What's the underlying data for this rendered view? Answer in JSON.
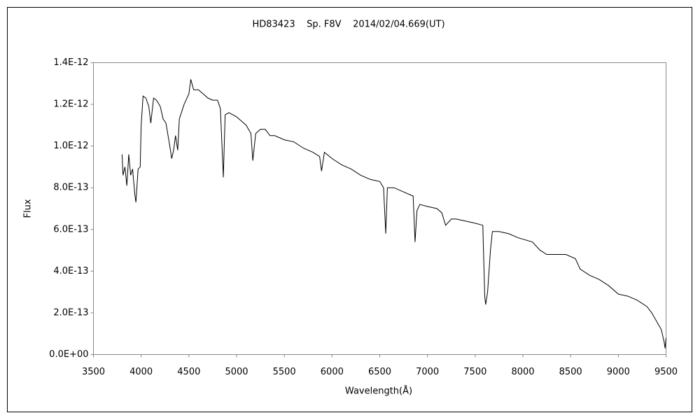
{
  "chart_data": {
    "type": "line",
    "title": "HD83423    Sp. F8V    2014/02/04.669(UT)",
    "x_label": "Wavelength(Å)",
    "y_label": "Flux",
    "color": "#000000",
    "xlim": [
      3500,
      9500
    ],
    "xticks": [
      3500,
      4000,
      4500,
      5000,
      5500,
      6000,
      6500,
      7000,
      7500,
      8000,
      8500,
      9000,
      9500
    ],
    "ylim": [
      0,
      1.4e-12
    ],
    "yticks": [
      {
        "value": 0,
        "label": "0.0E+00"
      },
      {
        "value": 2e-13,
        "label": "2.0E-13"
      },
      {
        "value": 4e-13,
        "label": "4.0E-13"
      },
      {
        "value": 6e-13,
        "label": "6.0E-13"
      },
      {
        "value": 8e-13,
        "label": "8.0E-13"
      },
      {
        "value": 1e-12,
        "label": "1.0E-12"
      },
      {
        "value": 1.2e-12,
        "label": "1.2E-12"
      },
      {
        "value": 1.4e-12,
        "label": "1.4E-12"
      }
    ],
    "x": [
      3800,
      3810,
      3830,
      3850,
      3870,
      3890,
      3910,
      3933,
      3945,
      3968,
      3990,
      4000,
      4020,
      4050,
      4080,
      4101,
      4130,
      4160,
      4200,
      4230,
      4260,
      4300,
      4320,
      4340,
      4360,
      4383,
      4400,
      4450,
      4500,
      4520,
      4550,
      4600,
      4650,
      4700,
      4750,
      4800,
      4830,
      4861,
      4880,
      4920,
      4960,
      5000,
      5050,
      5100,
      5150,
      5170,
      5200,
      5250,
      5300,
      5350,
      5400,
      5500,
      5600,
      5700,
      5800,
      5870,
      5890,
      5920,
      6000,
      6100,
      6200,
      6300,
      6400,
      6500,
      6540,
      6563,
      6580,
      6650,
      6750,
      6850,
      6870,
      6890,
      6920,
      7000,
      7100,
      7150,
      7190,
      7250,
      7300,
      7400,
      7500,
      7580,
      7600,
      7610,
      7630,
      7660,
      7680,
      7750,
      7850,
      7950,
      8100,
      8180,
      8250,
      8350,
      8450,
      8550,
      8600,
      8700,
      8800,
      8900,
      9000,
      9100,
      9200,
      9300,
      9350,
      9400,
      9450,
      9480,
      9490,
      9500
    ],
    "values": [
      9.6e-13,
      8.6e-13,
      9e-13,
      8.1e-13,
      9.6e-13,
      8.6e-13,
      8.9e-13,
      7.7e-13,
      7.3e-13,
      8.9e-13,
      9e-13,
      1.1e-12,
      1.24e-12,
      1.23e-12,
      1.19e-12,
      1.11e-12,
      1.23e-12,
      1.22e-12,
      1.19e-12,
      1.13e-12,
      1.11e-12,
      1e-12,
      9.4e-13,
      9.8e-13,
      1.05e-12,
      9.8e-13,
      1.13e-12,
      1.2e-12,
      1.25e-12,
      1.32e-12,
      1.27e-12,
      1.27e-12,
      1.25e-12,
      1.23e-12,
      1.22e-12,
      1.22e-12,
      1.18e-12,
      8.5e-13,
      1.15e-12,
      1.16e-12,
      1.15e-12,
      1.14e-12,
      1.12e-12,
      1.1e-12,
      1.06e-12,
      9.3e-13,
      1.06e-12,
      1.08e-12,
      1.08e-12,
      1.05e-12,
      1.05e-12,
      1.03e-12,
      1.02e-12,
      9.9e-13,
      9.7e-13,
      9.5e-13,
      8.8e-13,
      9.7e-13,
      9.4e-13,
      9.1e-13,
      8.9e-13,
      8.6e-13,
      8.4e-13,
      8.3e-13,
      8e-13,
      5.8e-13,
      8e-13,
      8e-13,
      7.8e-13,
      7.6e-13,
      5.4e-13,
      6.9e-13,
      7.2e-13,
      7.1e-13,
      7e-13,
      6.8e-13,
      6.2e-13,
      6.5e-13,
      6.5e-13,
      6.4e-13,
      6.3e-13,
      6.2e-13,
      2.8e-13,
      2.4e-13,
      3e-13,
      5e-13,
      5.9e-13,
      5.9e-13,
      5.8e-13,
      5.6e-13,
      5.4e-13,
      5e-13,
      4.8e-13,
      4.8e-13,
      4.8e-13,
      4.6e-13,
      4.1e-13,
      3.8e-13,
      3.6e-13,
      3.3e-13,
      2.9e-13,
      2.8e-13,
      2.6e-13,
      2.3e-13,
      2e-13,
      1.6e-13,
      1.2e-13,
      6e-14,
      3e-14,
      8e-14
    ]
  }
}
